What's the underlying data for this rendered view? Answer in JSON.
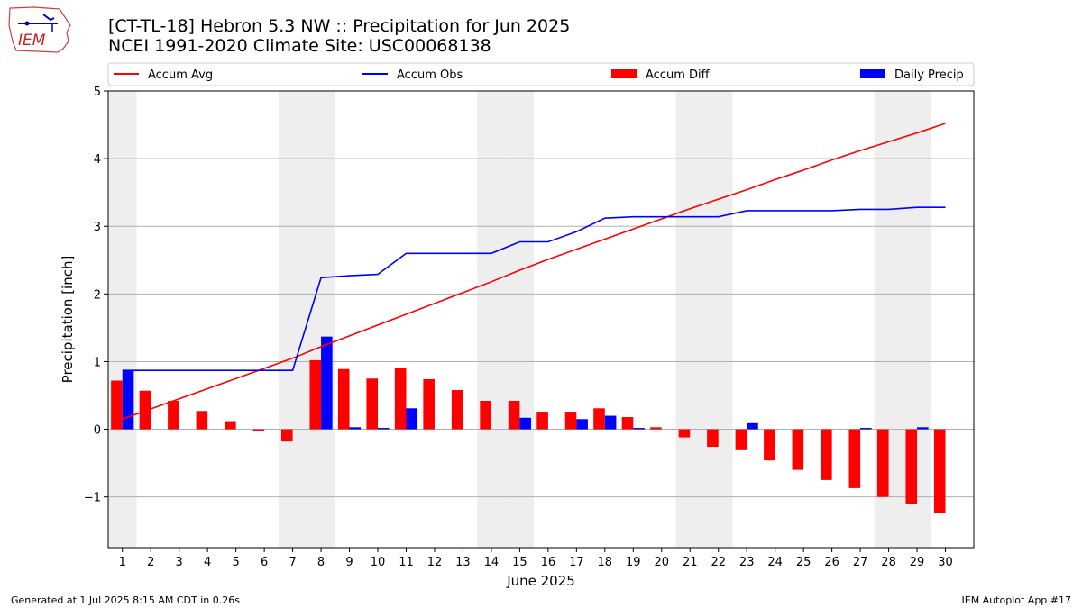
{
  "header": {
    "title_line1": "[CT-TL-18] Hebron 5.3 NW :: Precipitation for Jun 2025",
    "title_line2": "NCEI 1991-2020 Climate Site: USC00068138",
    "logo_text": "IEM"
  },
  "footer": {
    "left": "Generated at 1 Jul 2025 8:15 AM CDT in 0.26s",
    "right": "IEM Autoplot App #17"
  },
  "colors": {
    "avg": "#ff0000",
    "obs": "#0000ff",
    "diff": "#ff0000",
    "daily": "#0000ff",
    "weekend": "#eeeeee",
    "grid": "#b0b0b0"
  },
  "chart_data": {
    "type": "bar",
    "xlabel": "June 2025",
    "ylabel": "Precipitation [inch]",
    "ylim": [
      -1.75,
      5
    ],
    "yticks": [
      -1,
      0,
      1,
      2,
      3,
      4,
      5
    ],
    "ytick_labels": [
      "−1",
      "0",
      "1",
      "2",
      "3",
      "4",
      "5"
    ],
    "grid": "horizontal",
    "legend_position": "top",
    "x": [
      1,
      2,
      3,
      4,
      5,
      6,
      7,
      8,
      9,
      10,
      11,
      12,
      13,
      14,
      15,
      16,
      17,
      18,
      19,
      20,
      21,
      22,
      23,
      24,
      25,
      26,
      27,
      28,
      29,
      30
    ],
    "shaded_days": [
      1,
      7,
      8,
      14,
      15,
      21,
      22,
      28,
      29
    ],
    "series": [
      {
        "name": "Accum Avg",
        "kind": "line",
        "values": [
          0.15,
          0.3,
          0.45,
          0.6,
          0.75,
          0.9,
          1.05,
          1.22,
          1.38,
          1.54,
          1.7,
          1.86,
          2.02,
          2.18,
          2.35,
          2.51,
          2.66,
          2.81,
          2.96,
          3.11,
          3.26,
          3.4,
          3.54,
          3.69,
          3.83,
          3.98,
          4.12,
          4.25,
          4.38,
          4.52
        ]
      },
      {
        "name": "Accum Obs",
        "kind": "line",
        "values": [
          0.87,
          0.87,
          0.87,
          0.87,
          0.87,
          0.87,
          0.87,
          2.24,
          2.27,
          2.29,
          2.6,
          2.6,
          2.6,
          2.6,
          2.77,
          2.77,
          2.92,
          3.12,
          3.14,
          3.14,
          3.14,
          3.14,
          3.23,
          3.23,
          3.23,
          3.23,
          3.25,
          3.25,
          3.28,
          3.28
        ]
      },
      {
        "name": "Accum Diff",
        "kind": "bar",
        "values": [
          0.72,
          0.57,
          0.42,
          0.27,
          0.12,
          -0.03,
          -0.18,
          1.02,
          0.89,
          0.75,
          0.9,
          0.74,
          0.58,
          0.42,
          0.42,
          0.26,
          0.26,
          0.31,
          0.18,
          0.03,
          -0.12,
          -0.26,
          -0.31,
          -0.46,
          -0.6,
          -0.75,
          -0.87,
          -1.0,
          -1.1,
          -1.24
        ]
      },
      {
        "name": "Daily Precip",
        "kind": "bar",
        "values": [
          0.87,
          0,
          0,
          0,
          0,
          0,
          0,
          1.37,
          0.03,
          0.02,
          0.31,
          0,
          0,
          0,
          0.17,
          0,
          0.15,
          0.2,
          0.02,
          0,
          0,
          0,
          0.09,
          0,
          0,
          0,
          0.02,
          0,
          0.03,
          0
        ]
      }
    ]
  }
}
